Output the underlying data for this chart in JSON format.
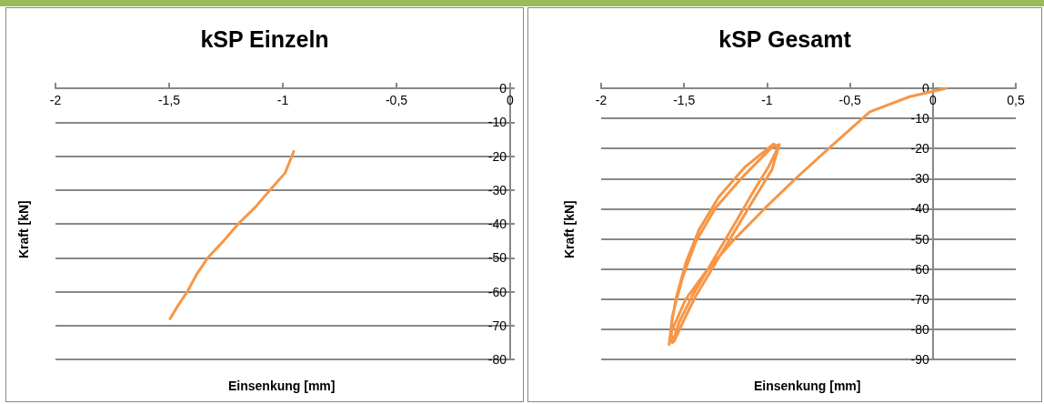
{
  "chart_data": [
    {
      "type": "line",
      "title": "kSP Einzeln",
      "xlabel": "Einsenkung [mm]",
      "ylabel": "Kraft [kN]",
      "xlim": [
        -2,
        0
      ],
      "xticks": [
        -2,
        {
          "value": -1.5,
          "label": "-1,5"
        },
        -1,
        {
          "value": -0.5,
          "label": "-0,5"
        },
        0
      ],
      "ylim": [
        -80,
        0
      ],
      "yticks": [
        0,
        -10,
        -20,
        -30,
        -40,
        -50,
        -60,
        -70,
        -80
      ],
      "grid": "y",
      "series": [
        {
          "color": "#f79646",
          "x": [
            -0.952,
            -0.96,
            -0.99,
            -1.056,
            -1.12,
            -1.196,
            -1.26,
            -1.33,
            -1.38,
            -1.42,
            -1.46,
            -1.496
          ],
          "values": [
            -18.6,
            -20,
            -25,
            -30,
            -35,
            -40,
            -45,
            -50,
            -55,
            -60,
            -64,
            -68
          ]
        }
      ]
    },
    {
      "type": "line",
      "title": "kSP Gesamt",
      "xlabel": "Einsenkung [mm]",
      "ylabel": "Kraft [kN]",
      "xlim": [
        -2,
        0.5
      ],
      "xticks": [
        -2,
        {
          "value": -1.5,
          "label": "-1,5"
        },
        -1,
        {
          "value": -0.5,
          "label": "-0,5"
        },
        0,
        {
          "value": 0.5,
          "label": "0,5"
        }
      ],
      "ylim": [
        -90,
        0
      ],
      "yticks": [
        0,
        -10,
        -20,
        -30,
        -40,
        -50,
        -60,
        -70,
        -80,
        -90
      ],
      "grid": "y",
      "series": [
        {
          "color": "#f79646",
          "x": [
            0.08,
            -0.14,
            -0.38,
            -0.62,
            -0.82,
            -1.01,
            -1.21,
            -1.37,
            -1.49,
            -1.57,
            -1.59,
            -1.57,
            -1.51,
            -1.43,
            -1.31,
            -1.15,
            -0.97,
            -0.925,
            -0.99,
            -1.09,
            -1.21,
            -1.33,
            -1.45,
            -1.53,
            -1.57,
            -1.58,
            -1.55,
            -1.49,
            -1.41,
            -1.29,
            -1.13,
            -0.96,
            -0.93,
            -0.97,
            -1.07,
            -1.19,
            -1.31,
            -1.43,
            -1.51,
            -1.56
          ],
          "values": [
            0,
            -2.8,
            -7.8,
            -19.6,
            -29.6,
            -39.7,
            -50.9,
            -61,
            -70,
            -80,
            -85,
            -75.5,
            -63,
            -51,
            -39.7,
            -29.6,
            -19.6,
            -18.7,
            -26,
            -35,
            -46.4,
            -57.6,
            -68.8,
            -77.7,
            -84.5,
            -80,
            -70,
            -58,
            -47,
            -36,
            -26,
            -18.5,
            -19.5,
            -27,
            -36,
            -47,
            -58,
            -69,
            -78,
            -84
          ]
        }
      ]
    }
  ]
}
